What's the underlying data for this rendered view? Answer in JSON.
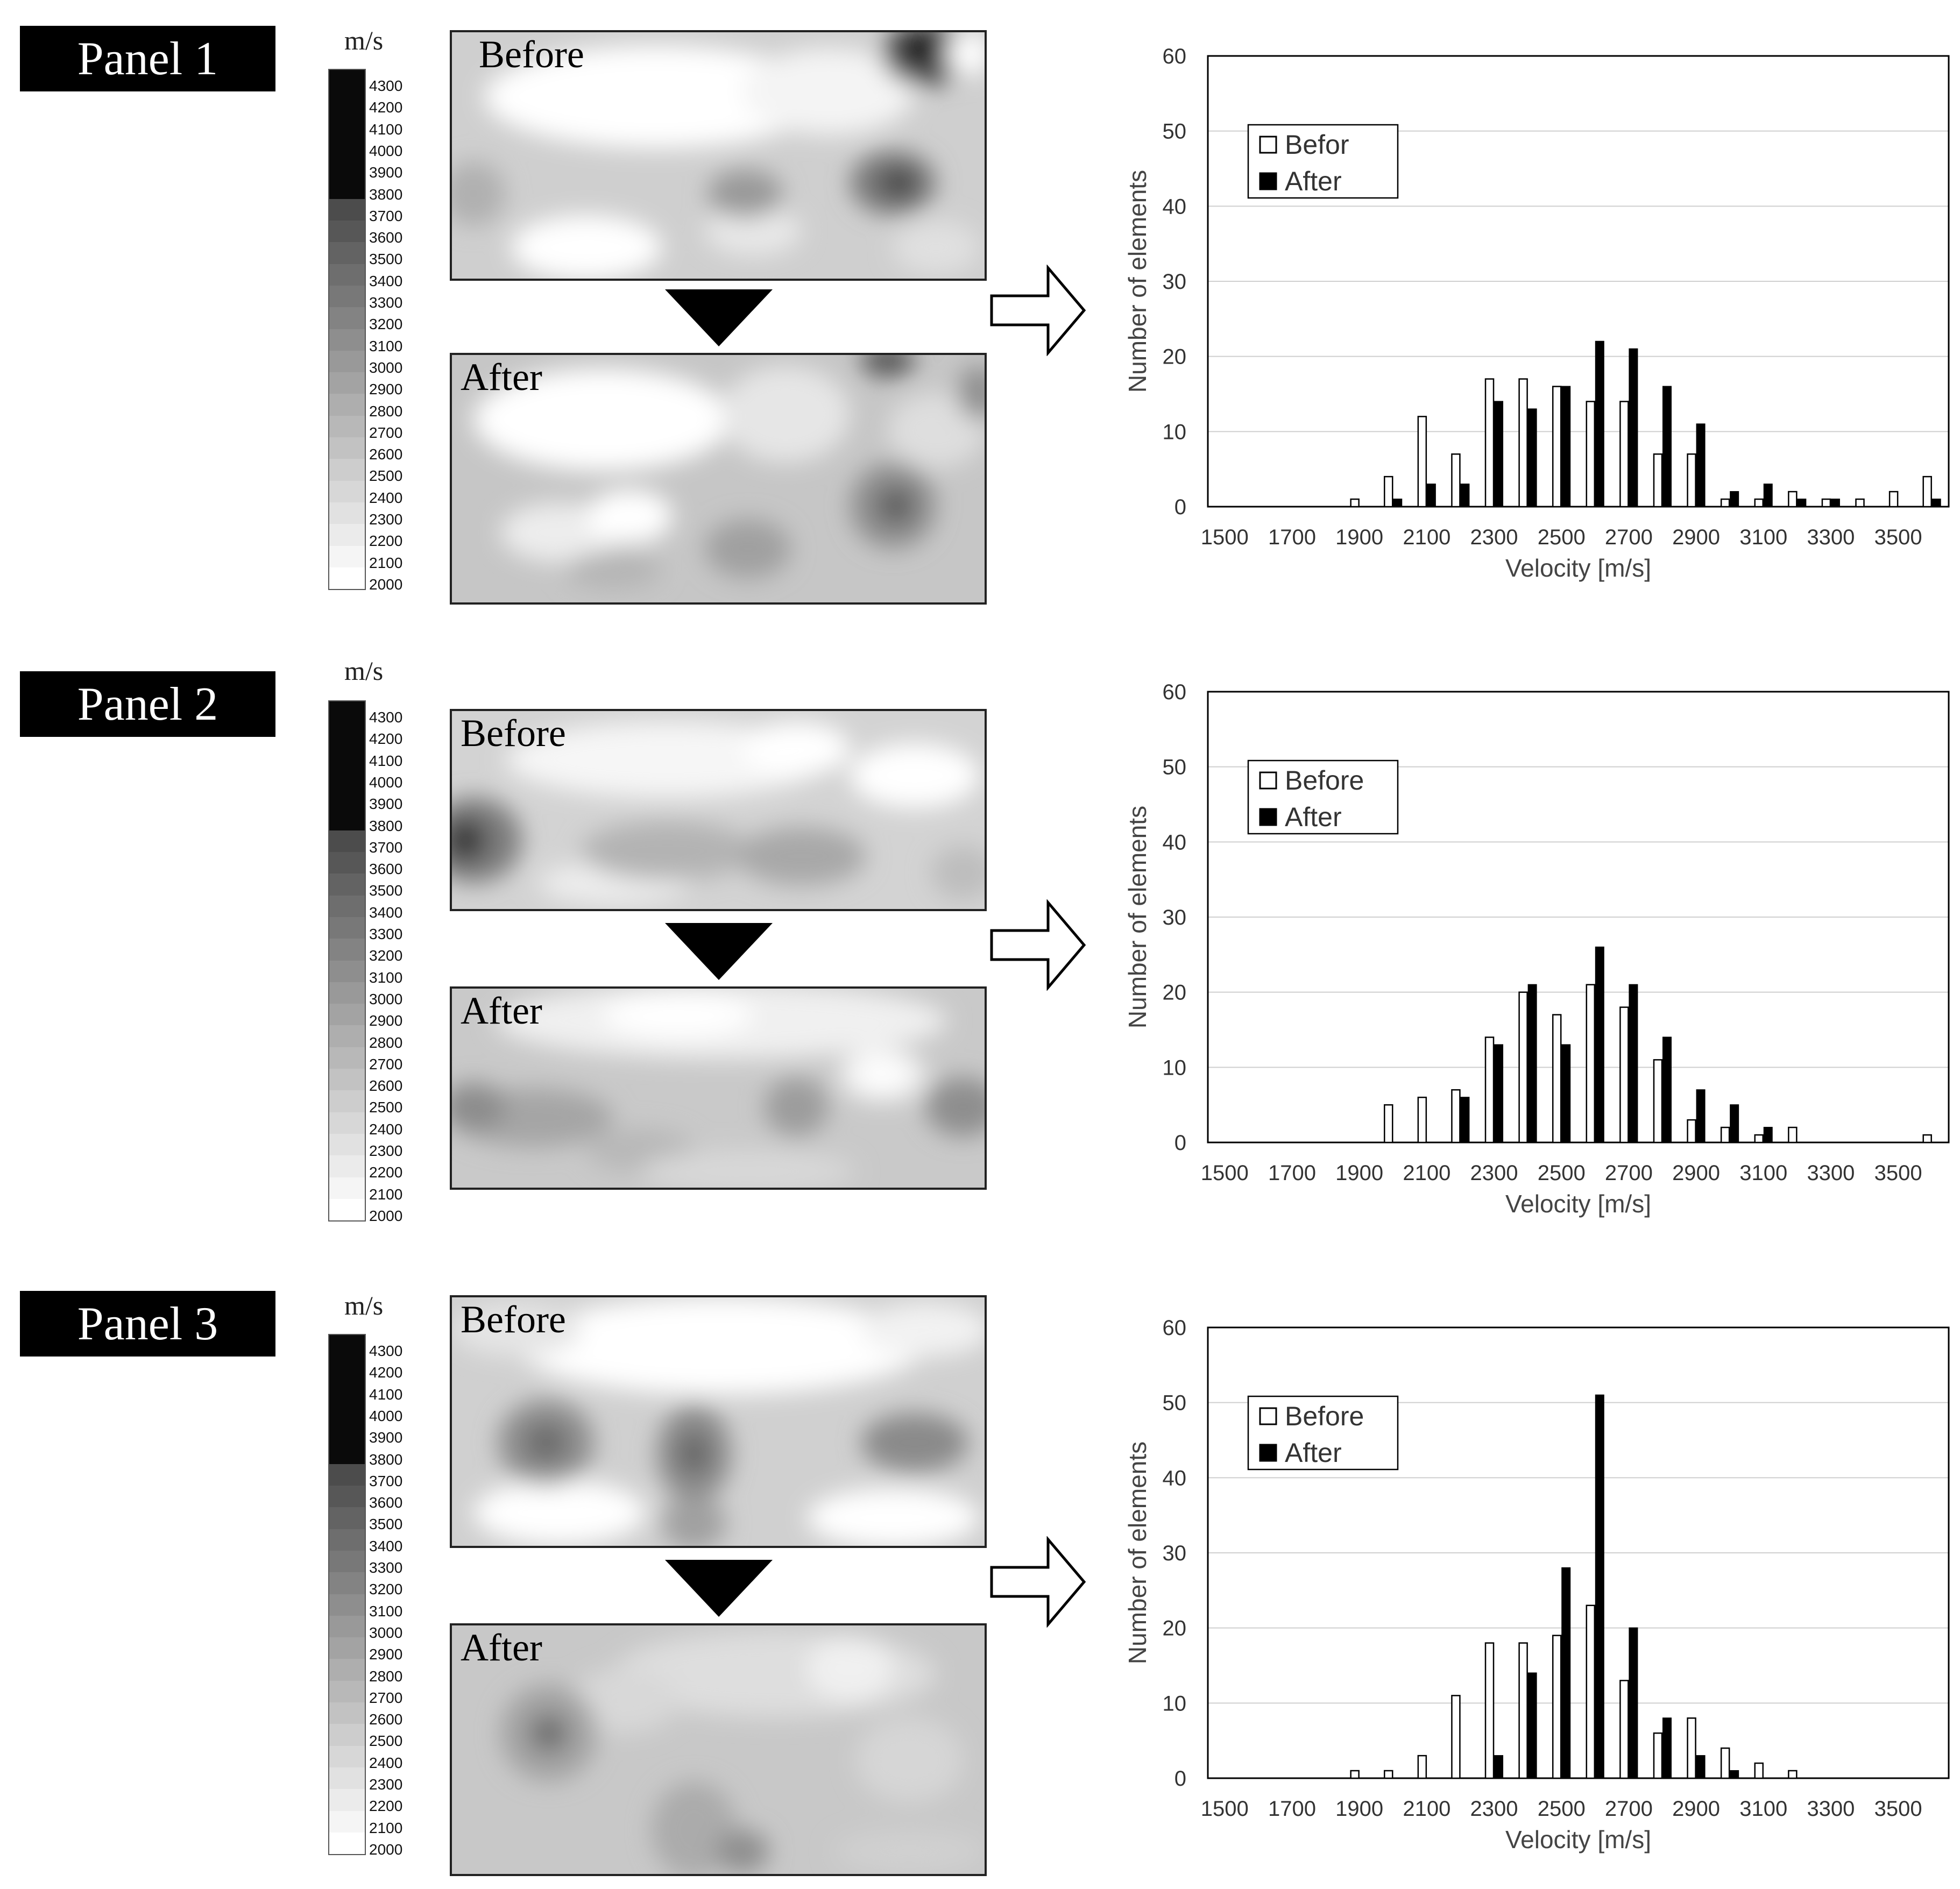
{
  "colorbar": {
    "unit": "m/s",
    "levels": [
      "4300",
      "4200",
      "4100",
      "4000",
      "3900",
      "3800",
      "3700",
      "3600",
      "3500",
      "3400",
      "3300",
      "3200",
      "3100",
      "3000",
      "2900",
      "2800",
      "2700",
      "2600",
      "2500",
      "2400",
      "2300",
      "2200",
      "2100",
      "2000"
    ]
  },
  "panels": [
    {
      "label": "Panel 1",
      "before_label": "Before",
      "after_label": "After",
      "legend": [
        "Befor",
        "After"
      ],
      "colors": {
        "before": "#ffffff",
        "after": "#000000"
      }
    },
    {
      "label": "Panel 2",
      "before_label": "Before",
      "after_label": "After",
      "legend": [
        "Before",
        "After"
      ],
      "colors": {
        "before": "#ffffff",
        "after": "#000000"
      }
    },
    {
      "label": "Panel 3",
      "before_label": "Before",
      "after_label": "After",
      "legend": [
        "Before",
        "After"
      ],
      "colors": {
        "before": "#ffffff",
        "after": "#000000"
      }
    }
  ],
  "chart_data": [
    {
      "type": "bar",
      "xlabel": "Velocity [m/s]",
      "ylabel": "Number of elements",
      "ylim": [
        0,
        60
      ],
      "yticks": [
        0,
        10,
        20,
        30,
        40,
        50,
        60
      ],
      "xticks": [
        "1500",
        "1700",
        "1900",
        "2100",
        "2300",
        "2500",
        "2700",
        "2900",
        "3100",
        "3300",
        "3500"
      ],
      "grid": true,
      "legend_position": "top-left",
      "categories": [
        1500,
        1600,
        1700,
        1800,
        1900,
        2000,
        2100,
        2200,
        2300,
        2400,
        2500,
        2600,
        2700,
        2800,
        2900,
        3000,
        3100,
        3200,
        3300,
        3400,
        3500,
        3600
      ],
      "series": [
        {
          "name": "Befor",
          "values": [
            0,
            0,
            0,
            0,
            1,
            4,
            12,
            7,
            17,
            17,
            16,
            14,
            14,
            7,
            7,
            1,
            1,
            2,
            1,
            1,
            2,
            4
          ]
        },
        {
          "name": "After",
          "values": [
            0,
            0,
            0,
            0,
            0,
            1,
            3,
            3,
            14,
            13,
            16,
            22,
            21,
            16,
            11,
            2,
            3,
            1,
            1,
            0,
            0,
            1
          ]
        }
      ]
    },
    {
      "type": "bar",
      "xlabel": "Velocity [m/s]",
      "ylabel": "Number of elements",
      "ylim": [
        0,
        60
      ],
      "yticks": [
        0,
        10,
        20,
        30,
        40,
        50,
        60
      ],
      "xticks": [
        "1500",
        "1700",
        "1900",
        "2100",
        "2300",
        "2500",
        "2700",
        "2900",
        "3100",
        "3300",
        "3500"
      ],
      "grid": true,
      "legend_position": "top-left",
      "categories": [
        1500,
        1600,
        1700,
        1800,
        1900,
        2000,
        2100,
        2200,
        2300,
        2400,
        2500,
        2600,
        2700,
        2800,
        2900,
        3000,
        3100,
        3200,
        3300,
        3400,
        3500,
        3600
      ],
      "series": [
        {
          "name": "Before",
          "values": [
            0,
            0,
            0,
            0,
            0,
            5,
            6,
            7,
            14,
            20,
            17,
            21,
            18,
            11,
            3,
            2,
            1,
            2,
            0,
            0,
            0,
            1
          ]
        },
        {
          "name": "After",
          "values": [
            0,
            0,
            0,
            0,
            0,
            0,
            0,
            6,
            13,
            21,
            13,
            26,
            21,
            14,
            7,
            5,
            2,
            0,
            0,
            0,
            0,
            0
          ]
        }
      ]
    },
    {
      "type": "bar",
      "xlabel": "Velocity [m/s]",
      "ylabel": "Number of elements",
      "ylim": [
        0,
        60
      ],
      "yticks": [
        0,
        10,
        20,
        30,
        40,
        50,
        60
      ],
      "xticks": [
        "1500",
        "1700",
        "1900",
        "2100",
        "2300",
        "2500",
        "2700",
        "2900",
        "3100",
        "3300",
        "3500"
      ],
      "grid": true,
      "legend_position": "top-left",
      "categories": [
        1500,
        1600,
        1700,
        1800,
        1900,
        2000,
        2100,
        2200,
        2300,
        2400,
        2500,
        2600,
        2700,
        2800,
        2900,
        3000,
        3100,
        3200,
        3300,
        3400,
        3500,
        3600
      ],
      "series": [
        {
          "name": "Before",
          "values": [
            0,
            0,
            0,
            0,
            1,
            1,
            3,
            11,
            18,
            18,
            19,
            23,
            13,
            6,
            8,
            4,
            2,
            1,
            0,
            0,
            0,
            0
          ]
        },
        {
          "name": "After",
          "values": [
            0,
            0,
            0,
            0,
            0,
            0,
            0,
            0,
            3,
            14,
            28,
            51,
            20,
            8,
            3,
            1,
            0,
            0,
            0,
            0,
            0,
            0
          ]
        }
      ]
    }
  ]
}
